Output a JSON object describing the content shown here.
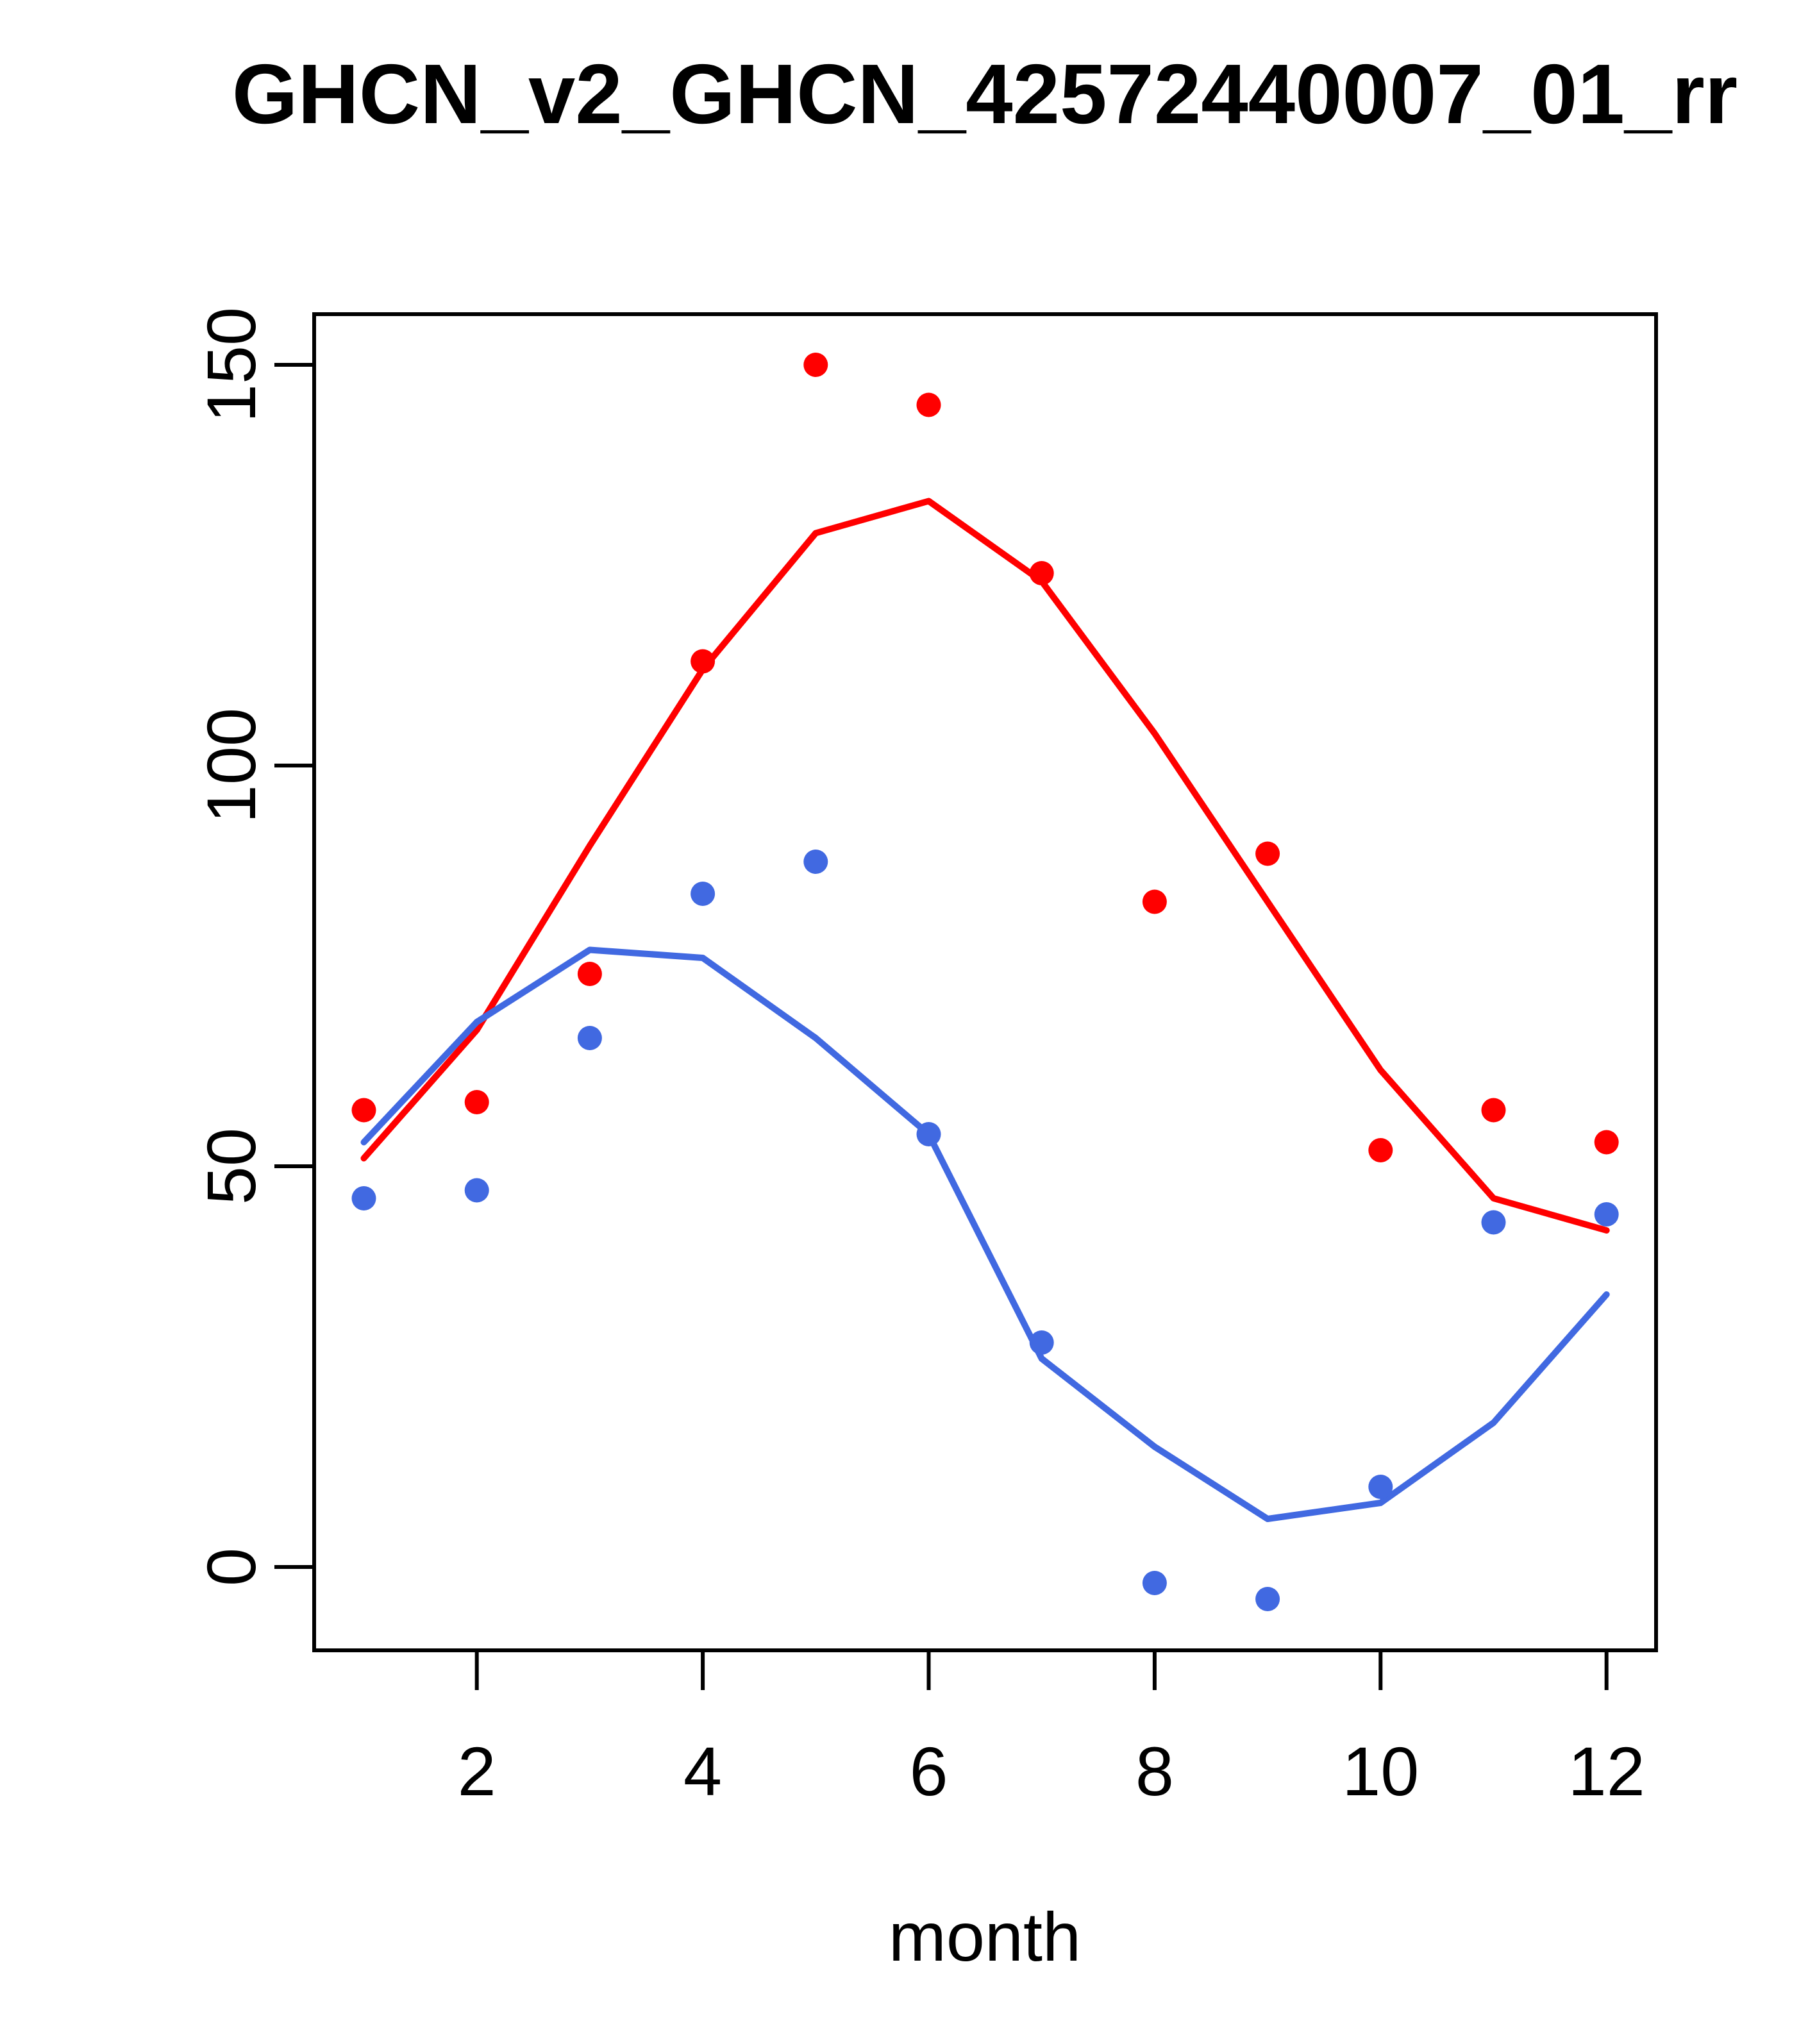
{
  "chart_data": {
    "type": "scatter",
    "title": "GHCN_v2_GHCN_42572440007_01_rr",
    "xlabel": "month",
    "ylabel": "",
    "x": [
      1,
      2,
      3,
      4,
      5,
      6,
      7,
      8,
      9,
      10,
      11,
      12
    ],
    "x_ticks": [
      2,
      4,
      6,
      8,
      10,
      12
    ],
    "y_ticks": [
      0,
      50,
      100,
      150
    ],
    "xlim": [
      0.56,
      12.44
    ],
    "ylim": [
      -10.4,
      156.3
    ],
    "grid": false,
    "legend": "none",
    "series": [
      {
        "name": "red-points",
        "kind": "scatter",
        "color": "#FF0000",
        "values": [
          57,
          58,
          74,
          113,
          150,
          145,
          124,
          83,
          89,
          52,
          57,
          53
        ]
      },
      {
        "name": "blue-points",
        "kind": "scatter",
        "color": "#4169E1",
        "values": [
          46,
          47,
          66,
          84,
          88,
          54,
          28,
          -2,
          -4,
          10,
          43,
          44
        ]
      },
      {
        "name": "red-smooth-line",
        "kind": "line",
        "color": "#FF0000",
        "values": [
          51,
          67,
          90,
          112,
          129,
          133,
          123,
          104,
          83,
          62,
          46,
          42
        ]
      },
      {
        "name": "blue-smooth-line",
        "kind": "line",
        "color": "#4169E1",
        "values": [
          53,
          68,
          77,
          76,
          66,
          54,
          26,
          15,
          6,
          8,
          18,
          34
        ]
      }
    ]
  }
}
